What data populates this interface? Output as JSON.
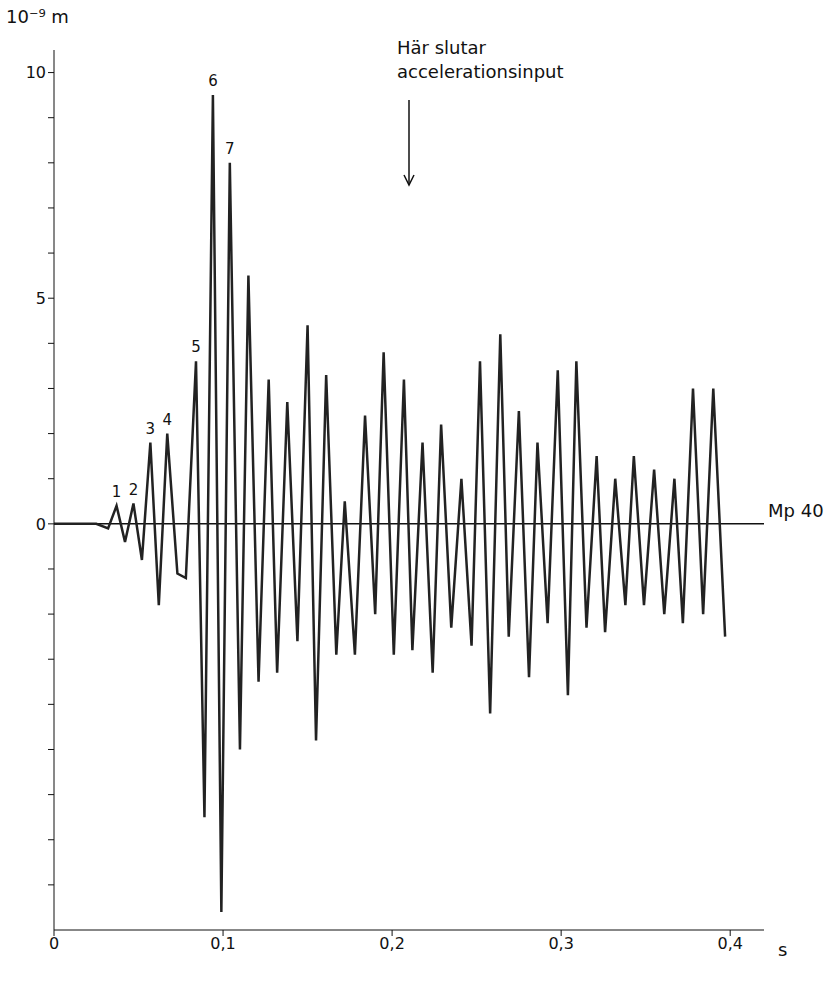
{
  "chart_data": {
    "type": "line",
    "y_label": "10⁻⁹ m",
    "x_label": "s",
    "annotation": {
      "text": "Här slutar accelerationsinput",
      "x": 0.21
    },
    "x": [
      0,
      0.025,
      0.032,
      0.037,
      0.042,
      0.047,
      0.052,
      0.057,
      0.062,
      0.067,
      0.073,
      0.078,
      0.084,
      0.089,
      0.094,
      0.099,
      0.104,
      0.11,
      0.115,
      0.121,
      0.127,
      0.132,
      0.138,
      0.144,
      0.15,
      0.155,
      0.161,
      0.167,
      0.172,
      0.178,
      0.184,
      0.19,
      0.195,
      0.201,
      0.207,
      0.212,
      0.218,
      0.224,
      0.229,
      0.235,
      0.241,
      0.247,
      0.252,
      0.258,
      0.264,
      0.269,
      0.275,
      0.281,
      0.286,
      0.292,
      0.298,
      0.304,
      0.309,
      0.315,
      0.321,
      0.326,
      0.332,
      0.338,
      0.343,
      0.349,
      0.355,
      0.361,
      0.367,
      0.372,
      0.378,
      0.384,
      0.39,
      0.397
    ],
    "series": [
      {
        "name": "Mp 40",
        "color": "#222222",
        "values": [
          0,
          0,
          -0.1,
          0.4,
          -0.4,
          0.45,
          -0.8,
          1.8,
          -1.8,
          2.0,
          -1.1,
          -1.2,
          3.6,
          -6.5,
          9.5,
          -8.6,
          8.0,
          -5.0,
          5.5,
          -3.5,
          3.2,
          -3.3,
          2.7,
          -2.6,
          4.4,
          -4.8,
          3.3,
          -2.9,
          0.5,
          -2.9,
          2.4,
          -2.0,
          3.8,
          -2.9,
          3.2,
          -2.8,
          1.8,
          -3.3,
          2.2,
          -2.3,
          1.0,
          -2.7,
          3.6,
          -4.2,
          4.2,
          -2.5,
          2.5,
          -3.4,
          1.8,
          -2.2,
          3.4,
          -3.8,
          3.6,
          -2.3,
          1.5,
          -2.4,
          1.0,
          -1.8,
          1.5,
          -1.8,
          1.2,
          -2.0,
          1.0,
          -2.2,
          3.0,
          -2.0,
          3.0,
          -2.5
        ]
      }
    ],
    "peak_labels": [
      {
        "label": "1",
        "x": 0.037,
        "y": 0.4
      },
      {
        "label": "2",
        "x": 0.047,
        "y": 0.45
      },
      {
        "label": "3",
        "x": 0.057,
        "y": 1.8
      },
      {
        "label": "4",
        "x": 0.067,
        "y": 2.0
      },
      {
        "label": "5",
        "x": 0.084,
        "y": 3.6
      },
      {
        "label": "6",
        "x": 0.094,
        "y": 9.5
      },
      {
        "label": "7",
        "x": 0.104,
        "y": 8.0
      }
    ],
    "xlim": [
      0,
      0.42
    ],
    "xticks": [
      0,
      {
        "value": 0.1,
        "label": "0,1"
      },
      {
        "value": 0.2,
        "label": "0,2"
      },
      {
        "value": 0.3,
        "label": "0,3"
      },
      {
        "value": 0.4,
        "label": "0,4"
      }
    ],
    "ylim": [
      -9,
      10.5
    ],
    "yticks": [
      0,
      5,
      10
    ],
    "minor_yticks": [
      -8,
      -7,
      -6,
      -5,
      -4,
      -3,
      -2,
      -1,
      1,
      2,
      3,
      4,
      6,
      7,
      8,
      9
    ],
    "grid": false
  }
}
